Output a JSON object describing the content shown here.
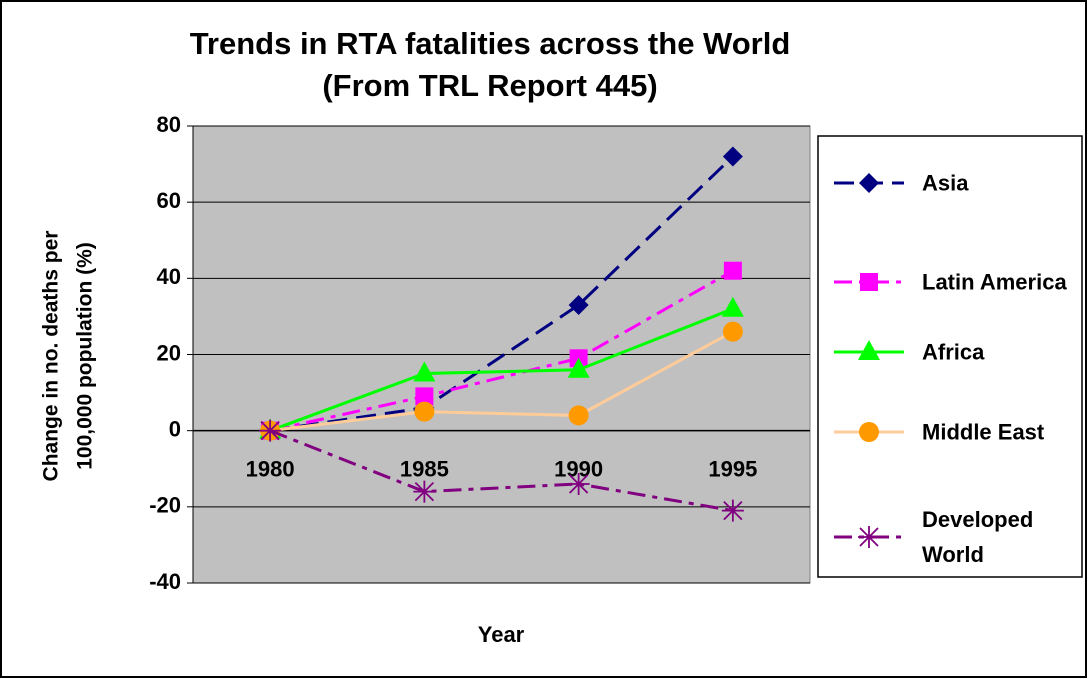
{
  "chart_data": {
    "type": "line",
    "title": [
      "Trends in RTA fatalities across the World",
      "(From TRL Report 445)"
    ],
    "y_label": [
      "Change in no. deaths per",
      "100,000 population (%)"
    ],
    "x_label": "Year",
    "categories": [
      "1980",
      "1985",
      "1990",
      "1995"
    ],
    "series": [
      {
        "name": "Asia",
        "color": "#000080",
        "marker": "diamond",
        "dash": "dashed",
        "values": [
          0,
          6,
          33,
          72
        ]
      },
      {
        "name": "Latin America",
        "color": "#FF00FF",
        "marker": "square",
        "dash": "dashdot",
        "values": [
          0,
          9,
          19,
          42
        ]
      },
      {
        "name": "Africa",
        "color": "#00FF00",
        "marker": "triangle",
        "dash": "solid",
        "values": [
          0,
          15,
          16,
          32
        ]
      },
      {
        "name": "Middle East",
        "color": "#FFCC99",
        "marker_color": "#FF9900",
        "marker": "circle",
        "dash": "solid",
        "values": [
          0,
          5,
          4,
          26
        ]
      },
      {
        "name": "Developed World",
        "color": "#800080",
        "marker": "star",
        "dash": "dashdot",
        "values": [
          0,
          -16,
          -14,
          -21
        ]
      }
    ],
    "ylim": [
      -40,
      80
    ],
    "yticks": [
      -40,
      -20,
      0,
      20,
      40,
      60,
      80
    ],
    "grid": true,
    "legend": "right"
  }
}
